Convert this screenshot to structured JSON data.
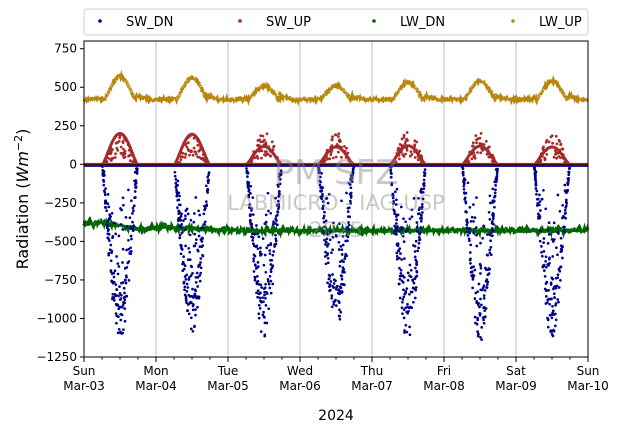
{
  "chart_data": {
    "type": "scatter",
    "title": "",
    "xlabel": "2024",
    "ylabel_main": "Radiation (",
    "ylabel_unit": "Wm",
    "ylabel_exp": "−2",
    "ylabel_close": ")",
    "ylim": [
      -1250,
      800
    ],
    "yticks": [
      -1250,
      -1000,
      -750,
      -500,
      -250,
      0,
      250,
      500,
      750
    ],
    "ytick_labels": [
      "−1250",
      "−1000",
      "−750",
      "−500",
      "−250",
      "0",
      "250",
      "500",
      "750"
    ],
    "x_range_days": [
      0,
      7
    ],
    "x_ticks": [
      {
        "day": "Sun",
        "date": "Mar-03"
      },
      {
        "day": "Mon",
        "date": "Mar-04"
      },
      {
        "day": "Tue",
        "date": "Mar-05"
      },
      {
        "day": "Wed",
        "date": "Mar-06"
      },
      {
        "day": "Thu",
        "date": "Mar-07"
      },
      {
        "day": "Fri",
        "date": "Mar-08"
      },
      {
        "day": "Sat",
        "date": "Mar-09"
      },
      {
        "day": "Sun",
        "date": "Mar-10"
      }
    ],
    "grid": "x-major",
    "legend_position": "top, outside, 4 columns",
    "watermark": {
      "line1": "PM SFZ",
      "line2": "LABMICRO - IAG-USP",
      "line3": "2025"
    },
    "series": [
      {
        "name": "SW_DN",
        "color": "#00008b",
        "daily_min": [
          -1140,
          -1090,
          -1130,
          -1080,
          -1160,
          -1150,
          -1120
        ],
        "night_value": 0
      },
      {
        "name": "SW_UP",
        "color": "#a52a2a",
        "daily_peak": [
          200,
          195,
          210,
          205,
          220,
          215,
          205
        ],
        "night_value": 0
      },
      {
        "name": "LW_DN",
        "color": "#006400",
        "range": [
          -450,
          -350
        ],
        "typical_start": -390,
        "typical_end": -430
      },
      {
        "name": "LW_UP",
        "color": "#b8860b",
        "night_value": 420,
        "daily_peak": [
          570,
          560,
          510,
          510,
          530,
          540,
          540
        ]
      }
    ]
  }
}
